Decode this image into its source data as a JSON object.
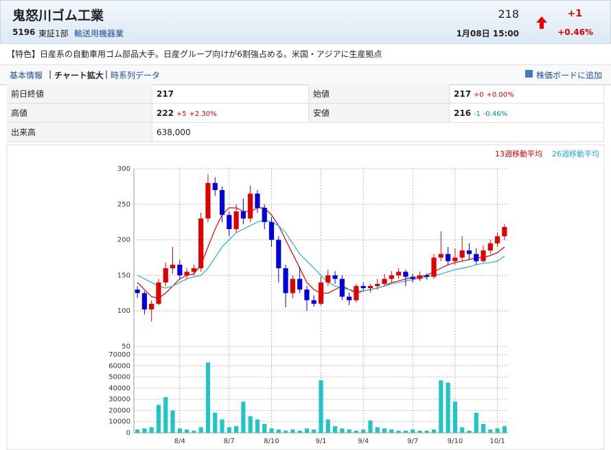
{
  "header": {
    "name": "鬼怒川ゴム工業",
    "code": "5196",
    "market": "東証1部",
    "sector": "輸送用機器業",
    "price": "218",
    "change": "+1",
    "change_pct": "+0.46%",
    "time": "1月08日 15:00"
  },
  "description": "【特色】日産系の自動車用ゴム部品大手。日産グループ向けが6割強占める。米国・アジアに生産拠点",
  "links": {
    "basic": "基本情報",
    "chart": "チャート拡大",
    "history": "時系列データ",
    "board": "株価ボードに追加"
  },
  "quotes": {
    "prev_close": {
      "label": "前日終値",
      "value": "217"
    },
    "open": {
      "label": "始値",
      "value": "217",
      "change": "+0",
      "pct": "+0.00%"
    },
    "high": {
      "label": "高値",
      "value": "222",
      "change": "+5",
      "pct": "+2.30%"
    },
    "low": {
      "label": "安値",
      "value": "216",
      "change": "-1",
      "pct": "-0.46%"
    },
    "volume": {
      "label": "出来高",
      "value": "638,000"
    }
  },
  "chart_data": {
    "type": "candlestick",
    "grid": true,
    "up_color": "#e00000",
    "down_color": "#0000dd",
    "volume_color": "#22c5c5",
    "categories": [
      null,
      null,
      null,
      null,
      null,
      null,
      "8/4",
      null,
      null,
      null,
      null,
      null,
      null,
      "8/7",
      null,
      null,
      null,
      null,
      null,
      "8/10",
      null,
      null,
      null,
      null,
      null,
      null,
      "9/1",
      null,
      null,
      null,
      null,
      null,
      "9/4",
      null,
      null,
      null,
      null,
      null,
      null,
      "9/7",
      null,
      null,
      null,
      null,
      null,
      "9/10",
      null,
      null,
      null,
      null,
      null,
      "10/1",
      null
    ],
    "open": [
      130,
      125,
      102,
      110,
      140,
      160,
      165,
      150,
      155,
      160,
      230,
      280,
      270,
      235,
      215,
      240,
      230,
      265,
      245,
      225,
      200,
      160,
      125,
      145,
      130,
      115,
      110,
      140,
      150,
      145,
      120,
      115,
      135,
      132,
      135,
      138,
      145,
      150,
      155,
      148,
      145,
      150,
      148,
      175,
      180,
      170,
      175,
      185,
      180,
      170,
      185,
      195,
      205
    ],
    "high": [
      135,
      128,
      115,
      145,
      168,
      190,
      172,
      160,
      165,
      238,
      292,
      288,
      275,
      240,
      250,
      258,
      276,
      270,
      250,
      232,
      205,
      165,
      150,
      162,
      135,
      122,
      148,
      158,
      156,
      150,
      126,
      138,
      140,
      138,
      145,
      152,
      156,
      160,
      158,
      152,
      155,
      153,
      180,
      212,
      190,
      188,
      205,
      195,
      188,
      192,
      200,
      210,
      222
    ],
    "low": [
      118,
      95,
      85,
      108,
      135,
      152,
      145,
      145,
      150,
      155,
      225,
      262,
      225,
      205,
      210,
      222,
      225,
      238,
      215,
      190,
      140,
      105,
      118,
      125,
      100,
      106,
      108,
      135,
      138,
      115,
      108,
      112,
      128,
      126,
      130,
      135,
      140,
      145,
      135,
      140,
      142,
      144,
      145,
      170,
      165,
      165,
      170,
      172,
      165,
      168,
      180,
      190,
      200
    ],
    "close": [
      125,
      102,
      110,
      140,
      160,
      165,
      150,
      155,
      160,
      230,
      280,
      270,
      235,
      215,
      240,
      230,
      265,
      245,
      225,
      200,
      160,
      125,
      145,
      130,
      115,
      110,
      140,
      150,
      145,
      120,
      115,
      135,
      132,
      135,
      138,
      145,
      150,
      155,
      148,
      145,
      150,
      148,
      175,
      180,
      170,
      175,
      185,
      180,
      170,
      185,
      195,
      205,
      218
    ],
    "volume": [
      3000,
      4000,
      5000,
      25000,
      32000,
      20000,
      4000,
      3000,
      2000,
      5000,
      63000,
      18000,
      12000,
      5000,
      6000,
      28000,
      15000,
      12000,
      8000,
      4000,
      3000,
      2000,
      3000,
      2000,
      4000,
      3000,
      47000,
      12000,
      6000,
      4000,
      3000,
      2000,
      3000,
      11000,
      5000,
      4000,
      3000,
      2000,
      2000,
      3000,
      2000,
      2000,
      3000,
      47000,
      45000,
      28000,
      5000,
      2000,
      18000,
      8000,
      3000,
      4000,
      6000
    ],
    "series": [
      {
        "name": "13週移動平均",
        "color": "#dd0000",
        "values": [
          140,
          130,
          120,
          118,
          125,
          135,
          145,
          150,
          152,
          165,
          190,
          215,
          235,
          245,
          245,
          240,
          240,
          245,
          245,
          235,
          220,
          200,
          180,
          160,
          140,
          130,
          125,
          125,
          130,
          135,
          130,
          125,
          128,
          130,
          132,
          135,
          140,
          142,
          145,
          147,
          148,
          150,
          155,
          160,
          165,
          168,
          170,
          172,
          175,
          175,
          178,
          182,
          190
        ]
      },
      {
        "name": "26週移動平均",
        "color": "#22b0c8",
        "values": [
          150,
          145,
          140,
          135,
          132,
          135,
          140,
          145,
          148,
          150,
          160,
          175,
          190,
          200,
          210,
          215,
          220,
          225,
          228,
          225,
          220,
          210,
          195,
          180,
          170,
          160,
          150,
          140,
          135,
          132,
          130,
          128,
          128,
          130,
          132,
          135,
          138,
          140,
          142,
          144,
          146,
          148,
          150,
          152,
          155,
          158,
          160,
          162,
          165,
          167,
          168,
          170,
          177
        ]
      }
    ],
    "ylim": [
      50,
      300
    ],
    "yticks": [
      50,
      100,
      150,
      200,
      250,
      300
    ],
    "y2lim": [
      0,
      70000
    ],
    "y2ticks": [
      0,
      10000,
      20000,
      30000,
      40000,
      50000,
      60000,
      70000
    ]
  }
}
